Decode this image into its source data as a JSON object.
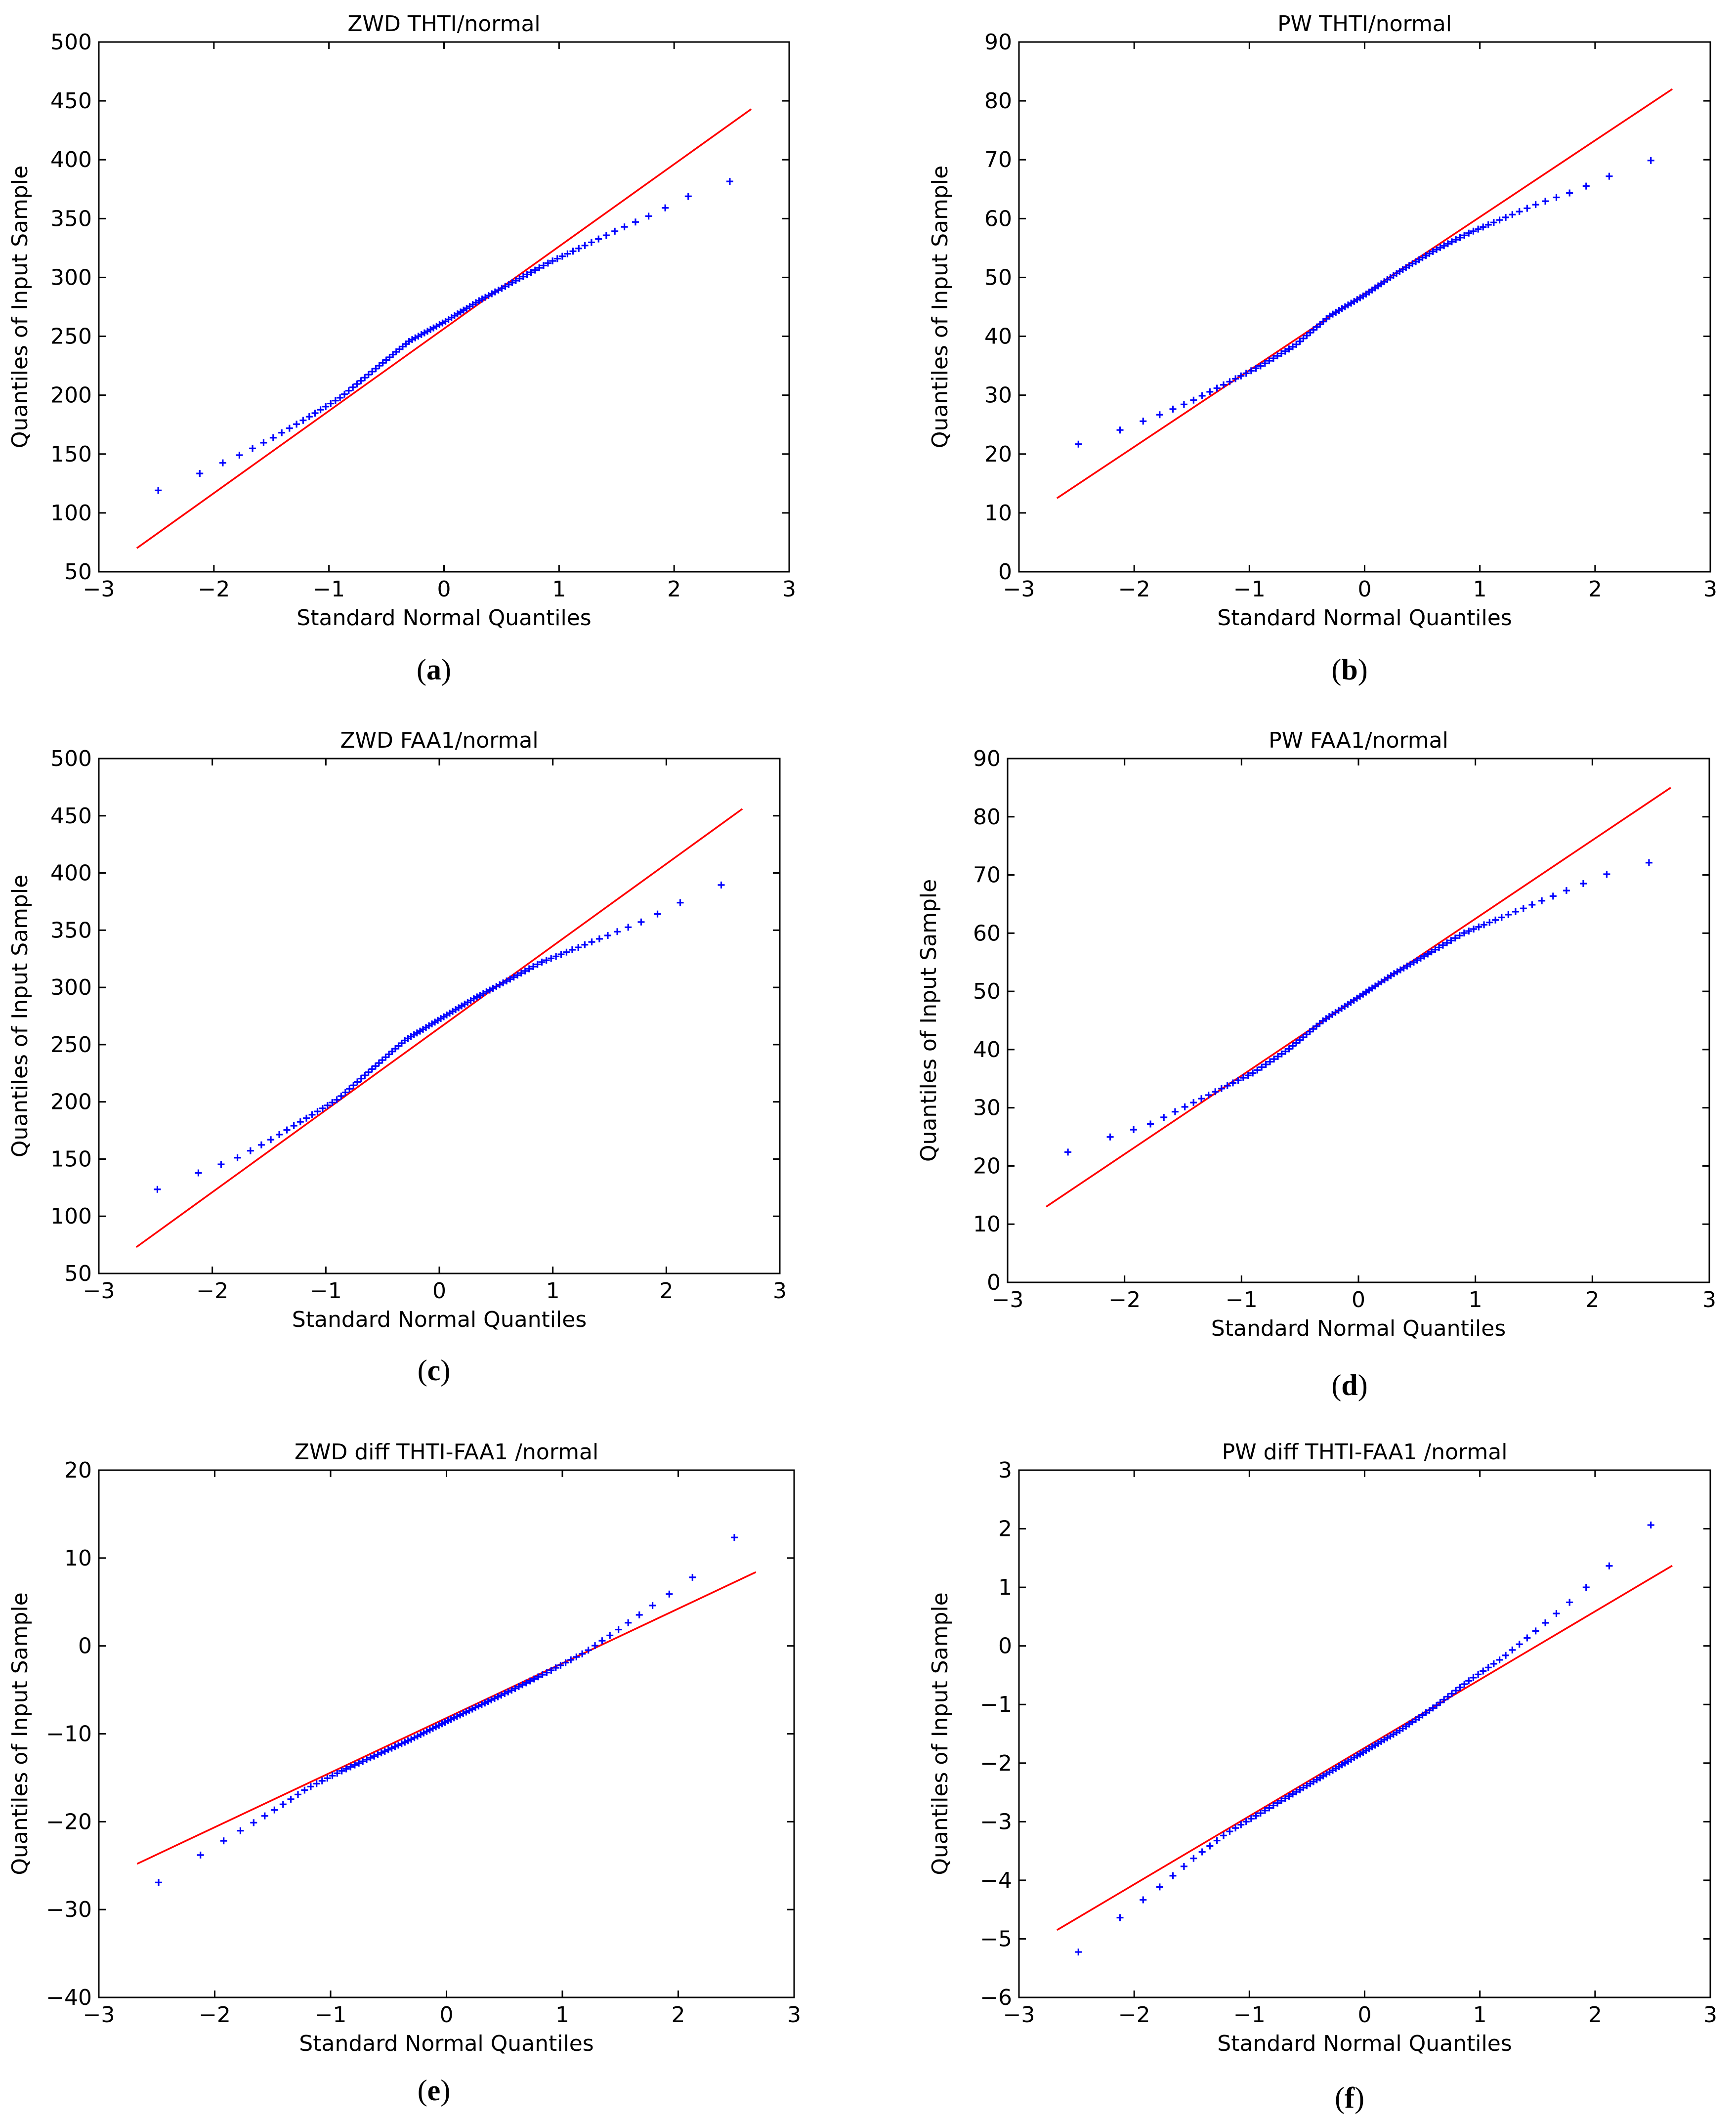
{
  "figure": {
    "description_labels": [
      "a",
      "b",
      "c",
      "d",
      "e",
      "f"
    ]
  },
  "chart_data": [
    {
      "id": "a",
      "type": "scatter",
      "title": "ZWD THTI/normal",
      "xlabel": "Standard Normal Quantiles",
      "ylabel": "Quantiles of Input Sample",
      "caption_letter": "a",
      "xlim": [
        -3,
        3
      ],
      "ylim": [
        50,
        500
      ],
      "xticks": [
        -3,
        -2,
        -1,
        0,
        1,
        2,
        3
      ],
      "xtick_labels": [
        "−3",
        "−2",
        "−1",
        "0",
        "1",
        "2",
        "3"
      ],
      "yticks": [
        50,
        100,
        150,
        200,
        250,
        300,
        350,
        400,
        450,
        500
      ],
      "ytick_labels": [
        "50",
        "100",
        "150",
        "200",
        "250",
        "300",
        "350",
        "400",
        "450",
        "500"
      ],
      "reference_line": {
        "x": [
          -2.67,
          2.67
        ],
        "y": [
          70,
          443
        ]
      },
      "quantile_curve": {
        "x": [
          -2.67,
          -2.2,
          -1.8,
          -1.5,
          -1.2,
          -0.9,
          -0.6,
          -0.3,
          0,
          0.3,
          0.6,
          0.9,
          1.2,
          1.5,
          1.8,
          2.1,
          2.4,
          2.67
        ],
        "y": [
          112,
          130,
          148,
          163,
          180,
          198,
          222,
          246,
          262,
          280,
          296,
          312,
          326,
          340,
          353,
          368,
          380,
          385
        ]
      },
      "sample_count": 96
    },
    {
      "id": "b",
      "type": "scatter",
      "title": "PW THTI/normal",
      "xlabel": "Standard Normal Quantiles",
      "ylabel": "Quantiles of Input Sample",
      "caption_letter": "b",
      "xlim": [
        -3,
        3
      ],
      "ylim": [
        0,
        90
      ],
      "xticks": [
        -3,
        -2,
        -1,
        0,
        1,
        2,
        3
      ],
      "xtick_labels": [
        "−3",
        "−2",
        "−1",
        "0",
        "1",
        "2",
        "3"
      ],
      "yticks": [
        0,
        10,
        20,
        30,
        40,
        50,
        60,
        70,
        80,
        90
      ],
      "ytick_labels": [
        "0",
        "10",
        "20",
        "30",
        "40",
        "50",
        "60",
        "70",
        "80",
        "90"
      ],
      "reference_line": {
        "x": [
          -2.67,
          2.67
        ],
        "y": [
          12.5,
          82
        ]
      },
      "quantile_curve": {
        "x": [
          -2.67,
          -2.2,
          -1.8,
          -1.5,
          -1.2,
          -0.9,
          -0.6,
          -0.3,
          0,
          0.3,
          0.6,
          0.9,
          1.2,
          1.5,
          1.8,
          2.1,
          2.4,
          2.67
        ],
        "y": [
          20.5,
          23.5,
          26.5,
          29,
          32,
          35,
          38.5,
          43.5,
          47,
          51,
          54.5,
          57.5,
          60,
          62.5,
          64.5,
          67,
          69.5,
          70.7
        ]
      },
      "sample_count": 96
    },
    {
      "id": "c",
      "type": "scatter",
      "title": "ZWD FAA1/normal",
      "xlabel": "Standard Normal Quantiles",
      "ylabel": "Quantiles of Input Sample",
      "caption_letter": "c",
      "xlim": [
        -3,
        3
      ],
      "ylim": [
        50,
        500
      ],
      "xticks": [
        -3,
        -2,
        -1,
        0,
        1,
        2,
        3
      ],
      "xtick_labels": [
        "−3",
        "−2",
        "−1",
        "0",
        "1",
        "2",
        "3"
      ],
      "yticks": [
        50,
        100,
        150,
        200,
        250,
        300,
        350,
        400,
        450,
        500
      ],
      "ytick_labels": [
        "50",
        "100",
        "150",
        "200",
        "250",
        "300",
        "350",
        "400",
        "450",
        "500"
      ],
      "reference_line": {
        "x": [
          -2.67,
          2.67
        ],
        "y": [
          73,
          456
        ]
      },
      "quantile_curve": {
        "x": [
          -2.67,
          -2.2,
          -1.8,
          -1.5,
          -1.2,
          -0.9,
          -0.6,
          -0.3,
          0,
          0.3,
          0.6,
          0.9,
          1.2,
          1.5,
          1.8,
          2.1,
          2.4,
          2.67
        ],
        "y": [
          116,
          135,
          150,
          166,
          184,
          202,
          228,
          254,
          272,
          290,
          306,
          322,
          334,
          346,
          358,
          373,
          387,
          395
        ]
      },
      "sample_count": 96
    },
    {
      "id": "d",
      "type": "scatter",
      "title": "PW FAA1/normal",
      "xlabel": "Standard Normal Quantiles",
      "ylabel": "Quantiles of Input Sample",
      "caption_letter": "d",
      "xlim": [
        -3,
        3
      ],
      "ylim": [
        0,
        90
      ],
      "xticks": [
        -3,
        -2,
        -1,
        0,
        1,
        2,
        3
      ],
      "xtick_labels": [
        "−3",
        "−2",
        "−1",
        "0",
        "1",
        "2",
        "3"
      ],
      "yticks": [
        0,
        10,
        20,
        30,
        40,
        50,
        60,
        70,
        80,
        90
      ],
      "ytick_labels": [
        "0",
        "10",
        "20",
        "30",
        "40",
        "50",
        "60",
        "70",
        "80",
        "90"
      ],
      "reference_line": {
        "x": [
          -2.67,
          2.67
        ],
        "y": [
          13,
          85
        ]
      },
      "quantile_curve": {
        "x": [
          -2.67,
          -2.2,
          -1.8,
          -1.5,
          -1.2,
          -0.9,
          -0.6,
          -0.3,
          0,
          0.3,
          0.6,
          0.9,
          1.2,
          1.5,
          1.8,
          2.1,
          2.4,
          2.67
        ],
        "y": [
          21,
          24.5,
          27,
          30,
          33,
          36,
          40,
          45,
          49,
          53,
          56.5,
          60,
          62.5,
          65,
          67.5,
          70,
          71.7,
          73
        ]
      },
      "sample_count": 96
    },
    {
      "id": "e",
      "type": "scatter",
      "title": "ZWD diff THTI-FAA1 /normal",
      "xlabel": "Standard Normal Quantiles",
      "ylabel": "Quantiles of Input Sample",
      "caption_letter": "e",
      "xlim": [
        -3,
        3
      ],
      "ylim": [
        -40,
        20
      ],
      "xticks": [
        -3,
        -2,
        -1,
        0,
        1,
        2,
        3
      ],
      "xtick_labels": [
        "−3",
        "−2",
        "−1",
        "0",
        "1",
        "2",
        "3"
      ],
      "yticks": [
        -40,
        -30,
        -20,
        -10,
        0,
        10,
        20
      ],
      "ytick_labels": [
        "−40",
        "−30",
        "−20",
        "−10",
        "0",
        "10",
        "20"
      ],
      "reference_line": {
        "x": [
          -2.67,
          2.67
        ],
        "y": [
          -24.8,
          8.4
        ]
      },
      "quantile_curve": {
        "x": [
          -2.67,
          -2.4,
          -2.1,
          -1.8,
          -1.5,
          -1.2,
          -0.9,
          -0.6,
          -0.3,
          0,
          0.3,
          0.6,
          0.9,
          1.2,
          1.5,
          1.8,
          2.1,
          2.4,
          2.67
        ],
        "y": [
          -28.5,
          -26.2,
          -23.6,
          -21.2,
          -18.8,
          -16.2,
          -14.2,
          -12.4,
          -10.6,
          -8.6,
          -6.7,
          -4.8,
          -2.8,
          -0.7,
          2.0,
          4.8,
          7.5,
          11.5,
          14.2
        ]
      },
      "sample_count": 96
    },
    {
      "id": "f",
      "type": "scatter",
      "title": "PW diff THTI-FAA1 /normal",
      "xlabel": "Standard Normal Quantiles",
      "ylabel": "Quantiles of Input Sample",
      "caption_letter": "f",
      "xlim": [
        -3,
        3
      ],
      "ylim": [
        -6,
        3
      ],
      "xticks": [
        -3,
        -2,
        -1,
        0,
        1,
        2,
        3
      ],
      "xtick_labels": [
        "−3",
        "−2",
        "−1",
        "0",
        "1",
        "2",
        "3"
      ],
      "yticks": [
        -6,
        -5,
        -4,
        -3,
        -2,
        -1,
        0,
        1,
        2,
        3
      ],
      "ytick_labels": [
        "−6",
        "−5",
        "−4",
        "−3",
        "−2",
        "−1",
        "0",
        "1",
        "2",
        "3"
      ],
      "reference_line": {
        "x": [
          -2.67,
          2.67
        ],
        "y": [
          -4.85,
          1.37
        ]
      },
      "quantile_curve": {
        "x": [
          -2.67,
          -2.4,
          -2.1,
          -1.8,
          -1.5,
          -1.2,
          -0.9,
          -0.6,
          -0.3,
          0,
          0.3,
          0.6,
          0.9,
          1.2,
          1.5,
          1.8,
          2.1,
          2.4,
          2.67
        ],
        "y": [
          -5.5,
          -5.1,
          -4.6,
          -4.15,
          -3.65,
          -3.2,
          -2.85,
          -2.5,
          -2.15,
          -1.8,
          -1.45,
          -1.05,
          -0.6,
          -0.2,
          0.28,
          0.78,
          1.32,
          1.92,
          2.38
        ]
      },
      "sample_count": 96
    }
  ]
}
